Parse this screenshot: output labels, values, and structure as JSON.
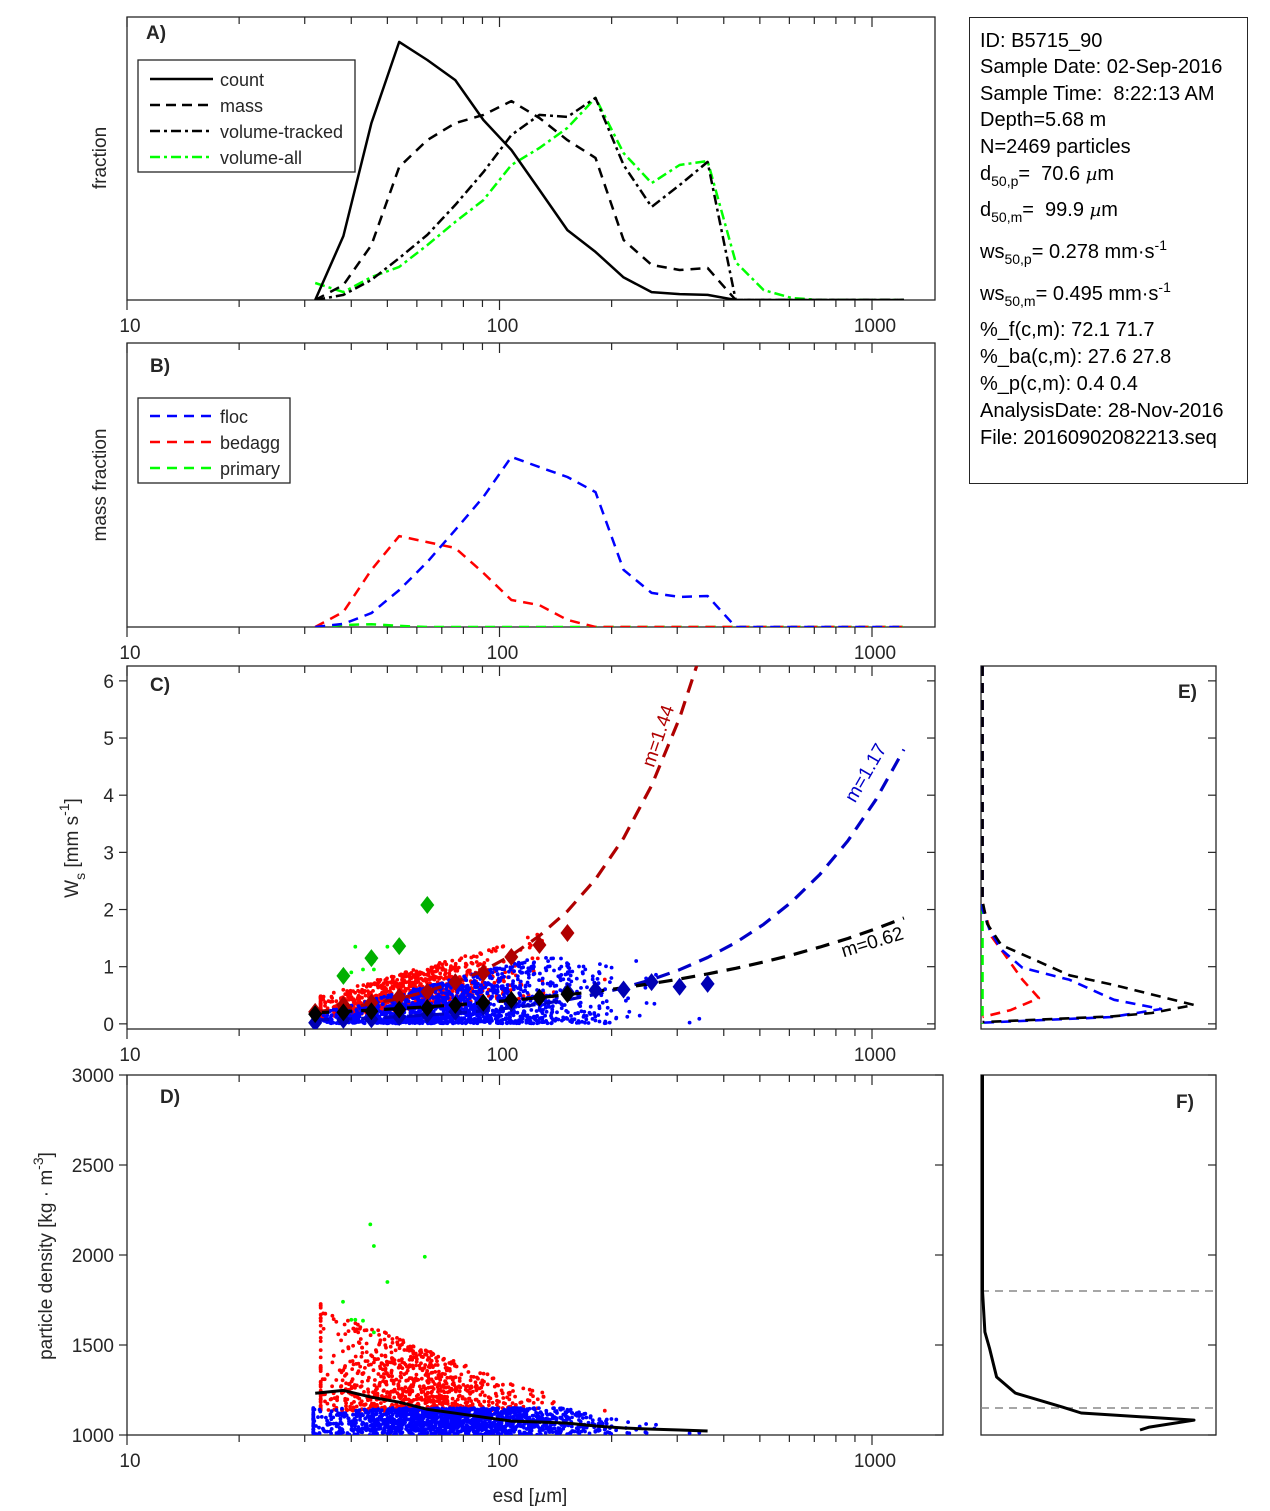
{
  "info_box": {
    "id": "ID: B5715_90",
    "sample_date": "Sample Date: 02-Sep-2016",
    "sample_time": "Sample Time:  8:22:13 AM",
    "depth": "Depth=5.68 m",
    "n": "N=2469 particles",
    "d50p": {
      "base": "d",
      "sub": "50,p",
      "rest": "=  70.6 ",
      "mu": "µ",
      "unit": "m"
    },
    "d50m": {
      "base": "d",
      "sub": "50,m",
      "rest": "=  99.9 ",
      "mu": "µ",
      "unit": "m"
    },
    "ws50p": {
      "base": "ws",
      "sub": "50,p",
      "rest": "= 0.278 mm·s",
      "sup": "-1"
    },
    "ws50m": {
      "base": "ws",
      "sub": "50,m",
      "rest": "= 0.495 mm·s",
      "sup": "-1"
    },
    "pf": "%_f(c,m): 72.1 71.7",
    "pba": "%_ba(c,m): 27.6 27.8",
    "pp": "%_p(c,m): 0.4 0.4",
    "analysis_date": "AnalysisDate: 28-Nov-2016",
    "file": "File: 20160902082213.seq"
  },
  "chart_data": [
    {
      "panel": "A)",
      "type": "line",
      "ylabel": "fraction",
      "xscale": "log",
      "xlim": [
        9.6,
        1476
      ],
      "ylim": [
        0,
        1
      ],
      "xticks": [
        10,
        100,
        1000
      ],
      "xtick_labels": [
        "10",
        "100",
        "1000"
      ],
      "legend": "top-left",
      "x": [
        32,
        38.1,
        45.3,
        53.8,
        64,
        76.1,
        90.5,
        107.6,
        128,
        152.2,
        181,
        215.3,
        256,
        304.4,
        362,
        430.5,
        512,
        608.9,
        724.1,
        861.1,
        1024,
        1217.7
      ],
      "series": [
        {
          "name": "count",
          "color": "#000000",
          "style": "solid",
          "values": [
            0,
            0.226,
            0.625,
            0.912,
            0.848,
            0.777,
            0.636,
            0.53,
            0.389,
            0.247,
            0.17,
            0.08,
            0.028,
            0.021,
            0.018,
            0,
            0,
            0,
            0,
            0,
            0,
            0
          ]
        },
        {
          "name": "mass",
          "color": "#000000",
          "style": "dashed",
          "values": [
            0,
            0.053,
            0.194,
            0.47,
            0.565,
            0.625,
            0.654,
            0.703,
            0.643,
            0.565,
            0.502,
            0.212,
            0.124,
            0.106,
            0.113,
            0,
            0,
            0,
            0,
            0,
            0,
            0
          ]
        },
        {
          "name": "volume-tracked",
          "color": "#000000",
          "style": "dashdot",
          "values": [
            0,
            0.018,
            0.071,
            0.148,
            0.23,
            0.336,
            0.452,
            0.583,
            0.654,
            0.647,
            0.714,
            0.477,
            0.329,
            0.406,
            0.488,
            0,
            0,
            0,
            0,
            0,
            0,
            0
          ]
        },
        {
          "name": "volume-all",
          "color": "#00ff00",
          "style": "dashdot",
          "values": [
            0.06,
            0.028,
            0.081,
            0.117,
            0.194,
            0.276,
            0.353,
            0.477,
            0.537,
            0.608,
            0.714,
            0.519,
            0.413,
            0.477,
            0.491,
            0.134,
            0.035,
            0.007,
            0,
            0,
            0,
            0
          ]
        }
      ]
    },
    {
      "panel": "B)",
      "type": "line",
      "ylabel": "mass fraction",
      "xscale": "log",
      "xlim": [
        9.6,
        1476
      ],
      "ylim": [
        0,
        1
      ],
      "xticks": [
        10,
        100,
        1000
      ],
      "xtick_labels": [
        "10",
        "100",
        "1000"
      ],
      "legend": "top-left",
      "x": [
        32,
        38.1,
        45.3,
        53.8,
        64,
        76.1,
        90.5,
        107.6,
        128,
        152.2,
        181,
        215.3,
        256,
        304.4,
        362,
        430.5,
        512,
        608.9,
        724.1,
        861.1,
        1024,
        1217.7
      ],
      "series": [
        {
          "name": "floc",
          "color": "#0000ff",
          "style": "dashed",
          "values": [
            0,
            0.011,
            0.049,
            0.13,
            0.229,
            0.342,
            0.458,
            0.599,
            0.563,
            0.528,
            0.475,
            0.201,
            0.12,
            0.106,
            0.109,
            0,
            0,
            0,
            0,
            0,
            0,
            0
          ]
        },
        {
          "name": "bedagg",
          "color": "#ff0000",
          "style": "dashed",
          "values": [
            0,
            0.053,
            0.201,
            0.32,
            0.299,
            0.278,
            0.19,
            0.095,
            0.077,
            0.025,
            0,
            0,
            0,
            0,
            0,
            0,
            0,
            0,
            0,
            0,
            0,
            0
          ]
        },
        {
          "name": "primary",
          "color": "#00ff00",
          "style": "dashed",
          "values": [
            0,
            0.007,
            0.01,
            0.004,
            0,
            0,
            0,
            0,
            0,
            0,
            0,
            0,
            0,
            0,
            0,
            0,
            0,
            0,
            0,
            0,
            0,
            0
          ]
        }
      ]
    },
    {
      "panel": "C)",
      "type": "scatter",
      "ylabel_main": "W",
      "ylabel_sub": "s",
      "ylabel_unit": " [mm s",
      "ylabel_sup": "-1",
      "ylabel_close": "]",
      "xscale": "log",
      "xlim": [
        9.6,
        1476
      ],
      "ylim": [
        -0.09,
        6.26
      ],
      "xticks": [
        10,
        100,
        1000
      ],
      "xtick_labels": [
        "10",
        "100",
        "1000"
      ],
      "yticks": [
        0,
        1,
        2,
        3,
        4,
        5,
        6
      ],
      "ytick_labels": [
        "0",
        "1",
        "2",
        "3",
        "4",
        "5",
        "6"
      ],
      "point_colors": {
        "floc": "#0000ff",
        "bedagg": "#ff0000",
        "primary": "#00ff00"
      },
      "bin_medians": [
        {
          "class": "bedagg",
          "color": "#b00000",
          "x": [
            32,
            38.1,
            45.3,
            53.8,
            64,
            76.1,
            90.5,
            107.6,
            128,
            152.2
          ],
          "y": [
            0.21,
            0.33,
            0.37,
            0.47,
            0.56,
            0.73,
            0.89,
            1.17,
            1.38,
            1.59
          ]
        },
        {
          "class": "floc",
          "color": "#0000b4",
          "x": [
            32,
            38.1,
            45.3,
            53.8,
            64,
            76.1,
            90.5,
            107.6,
            128,
            152.2,
            181,
            215.3,
            256,
            304.4,
            362
          ],
          "y": [
            0.02,
            0.07,
            0.08,
            0.12,
            0.16,
            0.21,
            0.3,
            0.36,
            0.45,
            0.56,
            0.59,
            0.6,
            0.73,
            0.65,
            0.7
          ]
        },
        {
          "class": "all",
          "color": "#000000",
          "x": [
            32,
            38.1,
            45.3,
            53.8,
            64,
            76.1,
            90.5,
            107.6,
            128,
            152.2
          ],
          "y": [
            0.17,
            0.2,
            0.22,
            0.25,
            0.28,
            0.33,
            0.37,
            0.42,
            0.46,
            0.52
          ]
        },
        {
          "class": "primary",
          "color": "#00b000",
          "x": [
            38.1,
            45.3,
            53.8,
            64
          ],
          "y": [
            0.84,
            1.15,
            1.36,
            2.08
          ]
        }
      ],
      "fits": [
        {
          "label": "m=1.44",
          "color": "#b00000",
          "x": [
            32,
            38.1,
            45.3,
            53.8,
            64,
            76.1,
            90.5,
            107.6,
            128,
            152.2,
            181,
            215.3,
            256,
            304.4,
            339
          ],
          "y": [
            0.21,
            0.27,
            0.35,
            0.44,
            0.57,
            0.73,
            0.93,
            1.2,
            1.54,
            1.97,
            2.53,
            3.25,
            4.17,
            5.35,
            6.28
          ]
        },
        {
          "label": "m=1.17",
          "color": "#0000c8",
          "x": [
            32,
            38.1,
            45.3,
            53.8,
            64,
            76.1,
            90.5,
            107.6,
            128,
            152.2,
            181,
            215.3,
            256,
            304.4,
            362,
            430.5,
            512,
            608.9,
            724.1,
            861.1,
            1024,
            1217.7
          ],
          "y": [
            0.068,
            0.083,
            0.102,
            0.125,
            0.153,
            0.187,
            0.229,
            0.281,
            0.344,
            0.421,
            0.516,
            0.632,
            0.774,
            0.948,
            1.161,
            1.422,
            1.742,
            2.133,
            2.613,
            3.2,
            3.919,
            4.8
          ]
        },
        {
          "label": "m=0.62",
          "color": "#000000",
          "x": [
            32,
            38.1,
            45.3,
            53.8,
            64,
            76.1,
            90.5,
            107.6,
            128,
            152.2,
            181,
            215.3,
            256,
            304.4,
            362,
            430.5,
            512,
            608.9,
            724.1,
            861.1,
            1024,
            1217.7
          ],
          "y": [
            0.194,
            0.216,
            0.241,
            0.268,
            0.298,
            0.332,
            0.37,
            0.412,
            0.458,
            0.51,
            0.568,
            0.633,
            0.704,
            0.784,
            0.873,
            0.972,
            1.082,
            1.205,
            1.342,
            1.494,
            1.663,
            1.852
          ]
        }
      ]
    },
    {
      "panel": "D)",
      "type": "scatter",
      "ylabel_main": "particle density [kg · m",
      "ylabel_sup": "-3",
      "ylabel_close": "]",
      "xlabel_pre": "esd [",
      "xlabel_mu": "µ",
      "xlabel_post": "m]",
      "xscale": "log",
      "xlim": [
        9.6,
        1476
      ],
      "ylim": [
        1000,
        3000
      ],
      "xticks": [
        10,
        100,
        1000
      ],
      "xtick_labels": [
        "10",
        "100",
        "1000"
      ],
      "yticks": [
        1000,
        1500,
        2000,
        2500,
        3000
      ],
      "ytick_labels": [
        "1000",
        "1500",
        "2000",
        "2500",
        "3000"
      ],
      "point_colors": {
        "floc": "#0000ff",
        "bedagg": "#ff0000",
        "primary": "#00ff00"
      },
      "mean_line": {
        "color": "#000000",
        "x": [
          32,
          38.1,
          45.3,
          53.8,
          64,
          76.1,
          90.5,
          107.6,
          128,
          152.2,
          181,
          215.3,
          256,
          304.4,
          362
        ],
        "y": [
          1232,
          1248,
          1210,
          1182,
          1143,
          1121,
          1099,
          1077,
          1072,
          1066,
          1050,
          1039,
          1033,
          1028,
          1022
        ]
      }
    },
    {
      "panel": "E)",
      "type": "line",
      "orientation": "horizontal",
      "ylim": [
        -0.09,
        6.26
      ],
      "xlim": [
        0,
        1
      ],
      "yticks": [
        0,
        1,
        2,
        3,
        4,
        5,
        6
      ],
      "series": [
        {
          "color": "#000000",
          "style": "dashed",
          "x": [
            0,
            0,
            0.02,
            0.08,
            0.37,
            0.56,
            0.9,
            0.72,
            0.55,
            0
          ],
          "y": [
            6.26,
            2.15,
            1.75,
            1.38,
            0.85,
            0.68,
            0.33,
            0.19,
            0.13,
            0.03
          ]
        },
        {
          "color": "#0000ff",
          "style": "dashed",
          "x": [
            0,
            0,
            0.03,
            0.08,
            0.17,
            0.37,
            0.56,
            0.76,
            0.55,
            0
          ],
          "y": [
            6.26,
            2.0,
            1.65,
            1.3,
            0.98,
            0.77,
            0.42,
            0.26,
            0.12,
            0.02
          ]
        },
        {
          "color": "#ff0000",
          "style": "dashed",
          "x": [
            0,
            0,
            0.04,
            0.09,
            0.17,
            0.24,
            0.12,
            0
          ],
          "y": [
            6.26,
            2.1,
            1.52,
            1.24,
            0.77,
            0.45,
            0.24,
            0.12
          ]
        },
        {
          "color": "#00ff00",
          "style": "dashed",
          "x": [
            0,
            0
          ],
          "y": [
            6.26,
            0
          ]
        }
      ]
    },
    {
      "panel": "F)",
      "type": "line",
      "orientation": "horizontal",
      "ylim": [
        1000,
        3000
      ],
      "xlim": [
        0,
        1
      ],
      "yticks": [
        1000,
        1500,
        2000,
        2500,
        3000
      ],
      "reference_lines": [
        1800,
        1150
      ],
      "series": [
        {
          "color": "#000000",
          "style": "solid",
          "x": [
            0,
            0,
            0.01,
            0.03,
            0.06,
            0.14,
            0.34,
            0.42,
            0.9,
            0.71,
            0.67
          ],
          "y": [
            3000,
            1800,
            1572,
            1483,
            1322,
            1233,
            1155,
            1122,
            1083,
            1044,
            1028
          ]
        }
      ]
    }
  ]
}
